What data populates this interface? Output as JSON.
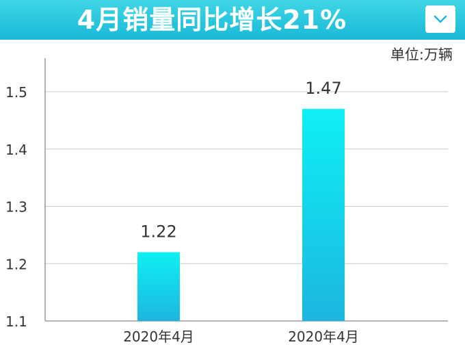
{
  "header": {
    "title": "4月销量同比增长21%",
    "dropdown_icon": "chevron-down-icon"
  },
  "unit_label": "单位:万辆",
  "colors": {
    "banner_top": "#3fd6e6",
    "banner_bottom": "#19b9d6",
    "bar_top": "#0ff0f4",
    "bar_bottom": "#1cb6e0",
    "grid": "#c8c8c8",
    "axis": "#666666"
  },
  "chart_data": {
    "type": "bar",
    "title": "4月销量同比增长21%",
    "categories": [
      "2020年4月",
      "2020年4月"
    ],
    "values": [
      1.22,
      1.47
    ],
    "data_labels": [
      "1.22",
      "1.47"
    ],
    "ylim": [
      1.1,
      1.5
    ],
    "yticks": [
      1.1,
      1.2,
      1.3,
      1.4,
      1.5
    ],
    "ytick_labels": [
      "1.1",
      "1.2",
      "1.3",
      "1.4",
      "1.5"
    ],
    "xlabel": "",
    "ylabel": "",
    "unit": "单位:万辆",
    "grid": true,
    "legend": "none"
  }
}
